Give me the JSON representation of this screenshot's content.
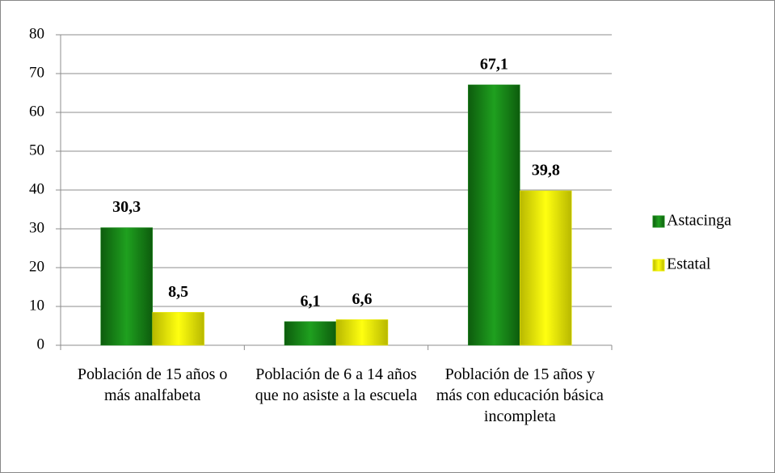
{
  "chart_data": {
    "type": "bar",
    "categories": [
      "Población de 15 años o más analfabeta",
      "Población de 6 a 14 años que no asiste a la escuela",
      "Población de 15 años y más con educación básica incompleta"
    ],
    "series": [
      {
        "name": "Astacinga",
        "color": "#1b8c1b",
        "values": [
          30.3,
          6.1,
          67.1
        ],
        "value_labels": [
          "30,3",
          "6,1",
          "67,1"
        ]
      },
      {
        "name": "Estatal",
        "color": "#eeee00",
        "values": [
          8.5,
          6.6,
          39.8
        ],
        "value_labels": [
          "8,5",
          "6,6",
          "39,8"
        ]
      }
    ],
    "ylim": [
      0,
      80
    ],
    "yticks": [
      0,
      10,
      20,
      30,
      40,
      50,
      60,
      70,
      80
    ],
    "grid": true,
    "legend": "right"
  }
}
